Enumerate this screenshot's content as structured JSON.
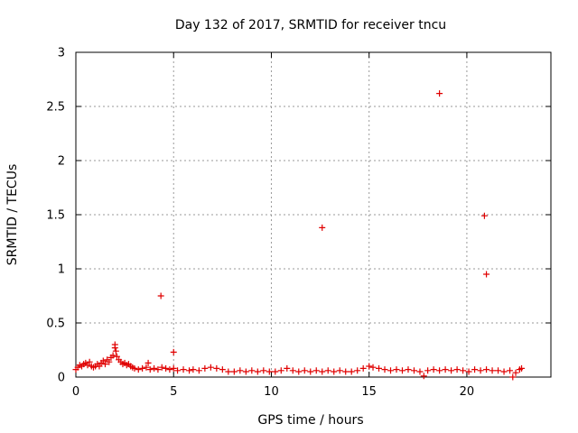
{
  "chart_data": {
    "type": "scatter",
    "title": "Day 132 of 2017, SRMTID for receiver tncu",
    "xlabel": "GPS time / hours",
    "ylabel": "SRMTID / TECUs",
    "xlim": [
      0,
      24.3
    ],
    "ylim": [
      0,
      3
    ],
    "xticks": [
      0,
      5,
      10,
      15,
      20
    ],
    "xtick_labels": [
      "0",
      "5",
      "10",
      "15",
      "20"
    ],
    "yticks": [
      0,
      0.5,
      1,
      1.5,
      2,
      2.5,
      3
    ],
    "ytick_labels": [
      "0",
      "0.5",
      "1",
      "1.5",
      "2",
      "2.5",
      "3"
    ],
    "grid": true,
    "marker": "+",
    "series": [
      {
        "name": "SRMTID",
        "color": "#e00000",
        "points": [
          [
            0.0,
            0.07
          ],
          [
            0.1,
            0.09
          ],
          [
            0.2,
            0.11
          ],
          [
            0.3,
            0.1
          ],
          [
            0.4,
            0.12
          ],
          [
            0.5,
            0.13
          ],
          [
            0.6,
            0.11
          ],
          [
            0.7,
            0.14
          ],
          [
            0.8,
            0.1
          ],
          [
            0.9,
            0.09
          ],
          [
            1.0,
            0.1
          ],
          [
            1.1,
            0.12
          ],
          [
            1.2,
            0.1
          ],
          [
            1.3,
            0.13
          ],
          [
            1.4,
            0.15
          ],
          [
            1.5,
            0.12
          ],
          [
            1.6,
            0.16
          ],
          [
            1.7,
            0.14
          ],
          [
            1.8,
            0.18
          ],
          [
            1.9,
            0.2
          ],
          [
            2.0,
            0.3
          ],
          [
            2.0,
            0.27
          ],
          [
            2.05,
            0.24
          ],
          [
            2.1,
            0.19
          ],
          [
            2.2,
            0.16
          ],
          [
            2.3,
            0.14
          ],
          [
            2.4,
            0.12
          ],
          [
            2.5,
            0.13
          ],
          [
            2.6,
            0.11
          ],
          [
            2.7,
            0.12
          ],
          [
            2.8,
            0.1
          ],
          [
            2.9,
            0.09
          ],
          [
            3.0,
            0.08
          ],
          [
            3.2,
            0.07
          ],
          [
            3.4,
            0.08
          ],
          [
            3.6,
            0.09
          ],
          [
            3.7,
            0.13
          ],
          [
            3.8,
            0.07
          ],
          [
            4.0,
            0.08
          ],
          [
            4.2,
            0.07
          ],
          [
            4.35,
            0.75
          ],
          [
            4.4,
            0.09
          ],
          [
            4.6,
            0.08
          ],
          [
            4.8,
            0.07
          ],
          [
            5.0,
            0.23
          ],
          [
            5.0,
            0.08
          ],
          [
            5.2,
            0.06
          ],
          [
            5.5,
            0.07
          ],
          [
            5.8,
            0.06
          ],
          [
            6.0,
            0.07
          ],
          [
            6.3,
            0.06
          ],
          [
            6.6,
            0.08
          ],
          [
            6.9,
            0.09
          ],
          [
            7.2,
            0.08
          ],
          [
            7.5,
            0.07
          ],
          [
            7.8,
            0.05
          ],
          [
            8.1,
            0.05
          ],
          [
            8.4,
            0.06
          ],
          [
            8.7,
            0.05
          ],
          [
            9.0,
            0.06
          ],
          [
            9.3,
            0.05
          ],
          [
            9.6,
            0.06
          ],
          [
            9.9,
            0.05
          ],
          [
            10.2,
            0.05
          ],
          [
            10.5,
            0.06
          ],
          [
            10.8,
            0.08
          ],
          [
            11.1,
            0.06
          ],
          [
            11.4,
            0.05
          ],
          [
            11.7,
            0.06
          ],
          [
            12.0,
            0.05
          ],
          [
            12.3,
            0.06
          ],
          [
            12.6,
            1.38
          ],
          [
            12.6,
            0.05
          ],
          [
            12.9,
            0.06
          ],
          [
            13.2,
            0.05
          ],
          [
            13.5,
            0.06
          ],
          [
            13.8,
            0.05
          ],
          [
            14.1,
            0.05
          ],
          [
            14.4,
            0.06
          ],
          [
            14.7,
            0.08
          ],
          [
            15.0,
            0.1
          ],
          [
            15.2,
            0.09
          ],
          [
            15.5,
            0.08
          ],
          [
            15.8,
            0.07
          ],
          [
            16.1,
            0.06
          ],
          [
            16.4,
            0.07
          ],
          [
            16.7,
            0.06
          ],
          [
            17.0,
            0.07
          ],
          [
            17.3,
            0.06
          ],
          [
            17.6,
            0.05
          ],
          [
            17.8,
            0.01
          ],
          [
            18.0,
            0.06
          ],
          [
            18.3,
            0.07
          ],
          [
            18.6,
            2.62
          ],
          [
            18.6,
            0.06
          ],
          [
            18.9,
            0.07
          ],
          [
            19.2,
            0.06
          ],
          [
            19.5,
            0.07
          ],
          [
            19.8,
            0.06
          ],
          [
            20.1,
            0.05
          ],
          [
            20.4,
            0.07
          ],
          [
            20.7,
            0.06
          ],
          [
            20.9,
            1.49
          ],
          [
            21.0,
            0.95
          ],
          [
            21.0,
            0.07
          ],
          [
            21.3,
            0.06
          ],
          [
            21.6,
            0.06
          ],
          [
            21.9,
            0.05
          ],
          [
            22.2,
            0.06
          ],
          [
            22.35,
            0.0
          ],
          [
            22.5,
            0.04
          ],
          [
            22.7,
            0.07
          ],
          [
            22.8,
            0.08
          ]
        ]
      }
    ]
  }
}
